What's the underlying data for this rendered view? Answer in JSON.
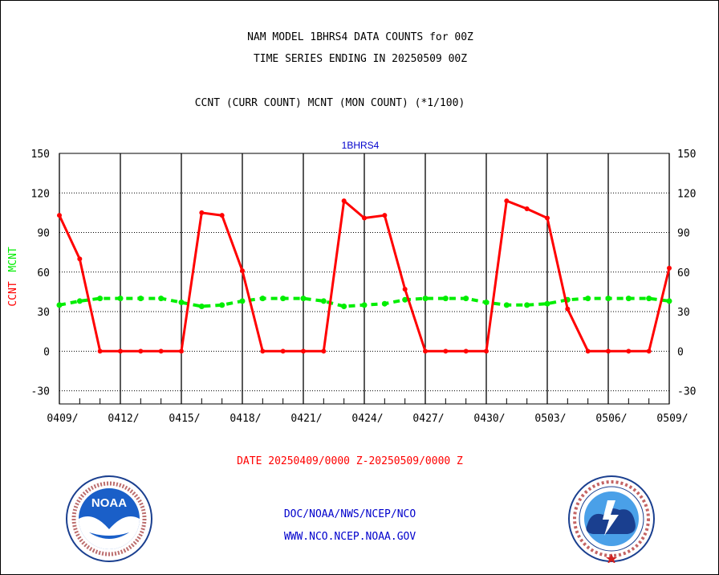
{
  "header": {
    "line1": "NAM MODEL 1BHRS4 DATA COUNTS for 00Z",
    "line2": "TIME SERIES ENDING IN 20250509 00Z",
    "line3": "CCNT (CURR COUNT) MCNT (MON COUNT) (*1/100)"
  },
  "footer": {
    "date_range": "DATE 20250409/0000 Z-20250509/0000 Z",
    "org": "DOC/NOAA/NWS/NCEP/NCO",
    "url": "WWW.NCO.NCEP.NOAA.GOV"
  },
  "logos": {
    "left": "NOAA",
    "right_ring": "NATIONAL WEATHER SERVICE"
  },
  "colors": {
    "ccnt": "#ff0000",
    "mcnt": "#00ee00",
    "plot_title": "#0000cc",
    "date_range": "#ff0000",
    "footer_links": "#0000cc"
  },
  "chart_data": {
    "type": "line",
    "title": "1BHRS4",
    "ylabel_ccnt": "CCNT",
    "ylabel_mcnt": "MCNT",
    "ylim": [
      -40,
      150
    ],
    "yticks": [
      -30,
      0,
      30,
      60,
      90,
      120,
      150
    ],
    "x_start": "0409",
    "x_days": 30,
    "xticks": [
      "0409/",
      "0412/",
      "0415/",
      "0418/",
      "0421/",
      "0424/",
      "0427/",
      "0430/",
      "0503/",
      "0506/",
      "0509/"
    ],
    "grid": true,
    "series": [
      {
        "name": "CCNT",
        "color": "#ff0000",
        "style": "solid",
        "x": [
          0,
          1,
          2,
          3,
          4,
          5,
          6,
          7,
          8,
          9,
          10,
          11,
          12,
          13,
          14,
          15,
          16,
          17,
          18,
          19,
          20,
          21,
          22,
          23,
          24,
          25,
          26,
          27,
          28,
          29,
          30
        ],
        "values": [
          103,
          70,
          0,
          0,
          0,
          0,
          0,
          105,
          103,
          61,
          0,
          0,
          0,
          0,
          114,
          101,
          103,
          47,
          0,
          0,
          0,
          0,
          114,
          108,
          101,
          32,
          0,
          0,
          0,
          0,
          63
        ]
      },
      {
        "name": "MCNT",
        "color": "#00ee00",
        "style": "dashed",
        "x": [
          0,
          1,
          2,
          3,
          4,
          5,
          6,
          7,
          8,
          9,
          10,
          11,
          12,
          13,
          14,
          15,
          16,
          17,
          18,
          19,
          20,
          21,
          22,
          23,
          24,
          25,
          26,
          27,
          28,
          29,
          30
        ],
        "values": [
          35,
          38,
          40,
          40,
          40,
          40,
          37,
          34,
          35,
          38,
          40,
          40,
          40,
          38,
          34,
          35,
          36,
          39,
          40,
          40,
          40,
          37,
          35,
          35,
          36,
          39,
          40,
          40,
          40,
          40,
          38
        ]
      }
    ]
  }
}
